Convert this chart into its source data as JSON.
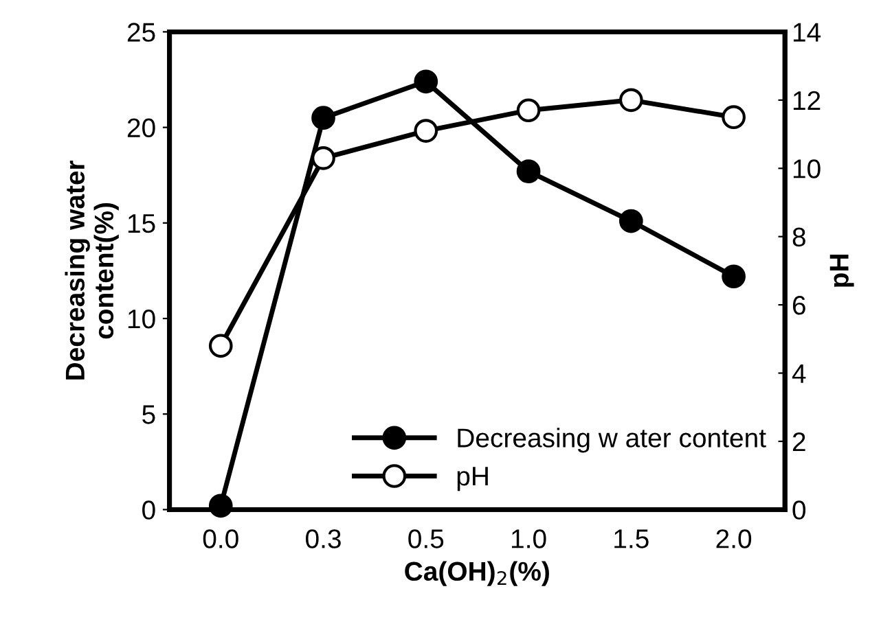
{
  "chart_data": {
    "type": "line",
    "xlabel": "Ca(OH)$_{2}$(%)",
    "ylabel": "Decreasing water\ncontent(%)",
    "y2label": "pH",
    "categories": [
      "0.0",
      "0.3",
      "0.5",
      "1.0",
      "1.5",
      "2.0"
    ],
    "series": [
      {
        "name": "Decreasing w ater content",
        "color": "#000000",
        "marker": "circle",
        "values": [
          0.2,
          20.5,
          22.4,
          17.7,
          15.1,
          12.2
        ]
      },
      {
        "name": "pH",
        "color": "#000000",
        "marker": "circle",
        "axis": "y2",
        "values": [
          4.8,
          10.3,
          11.1,
          11.7,
          12.0,
          11.5
        ]
      }
    ],
    "ylim": [
      0,
      25
    ],
    "yticks": [
      0,
      5,
      10,
      15,
      20,
      25
    ],
    "y2lim": [
      0,
      14
    ],
    "y2ticks": [
      0,
      2,
      4,
      6,
      8,
      10,
      12,
      14
    ],
    "grid": false,
    "legend": "bottom right",
    "line_style": "solid"
  }
}
